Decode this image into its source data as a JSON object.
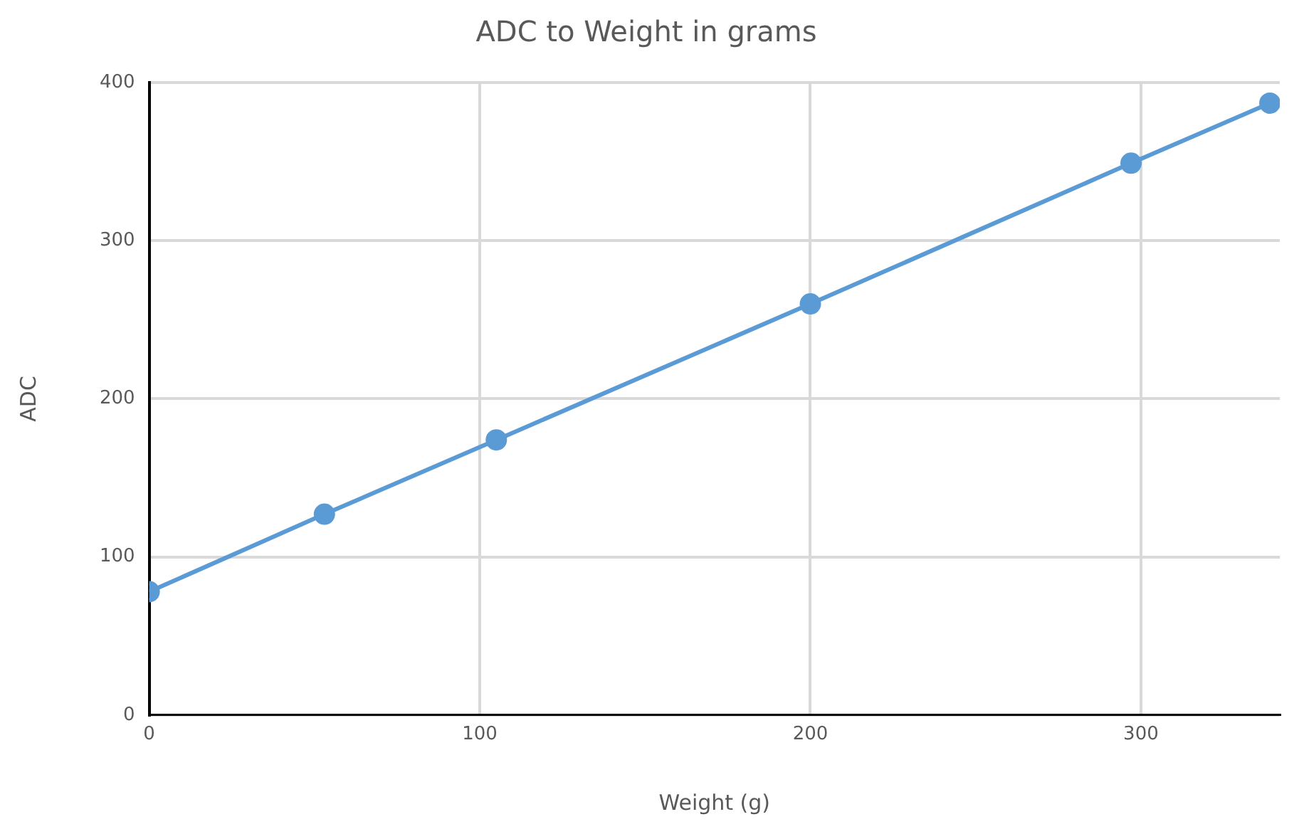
{
  "chart_data": {
    "type": "line",
    "title": "ADC to Weight in grams",
    "xlabel": "Weight (g)",
    "ylabel": "ADC",
    "x": [
      0,
      53,
      105,
      200,
      297,
      339
    ],
    "series": [
      {
        "color": "#5b9bd5",
        "values": [
          78,
          127,
          174,
          260,
          349,
          387
        ]
      }
    ],
    "xlim": [
      0,
      342
    ],
    "xticks": [
      0,
      100,
      200,
      300
    ],
    "ylim": [
      0,
      400
    ],
    "yticks": [
      0,
      100,
      200,
      300,
      400
    ],
    "grid": true,
    "marker": "circle",
    "line_style": "solid"
  }
}
